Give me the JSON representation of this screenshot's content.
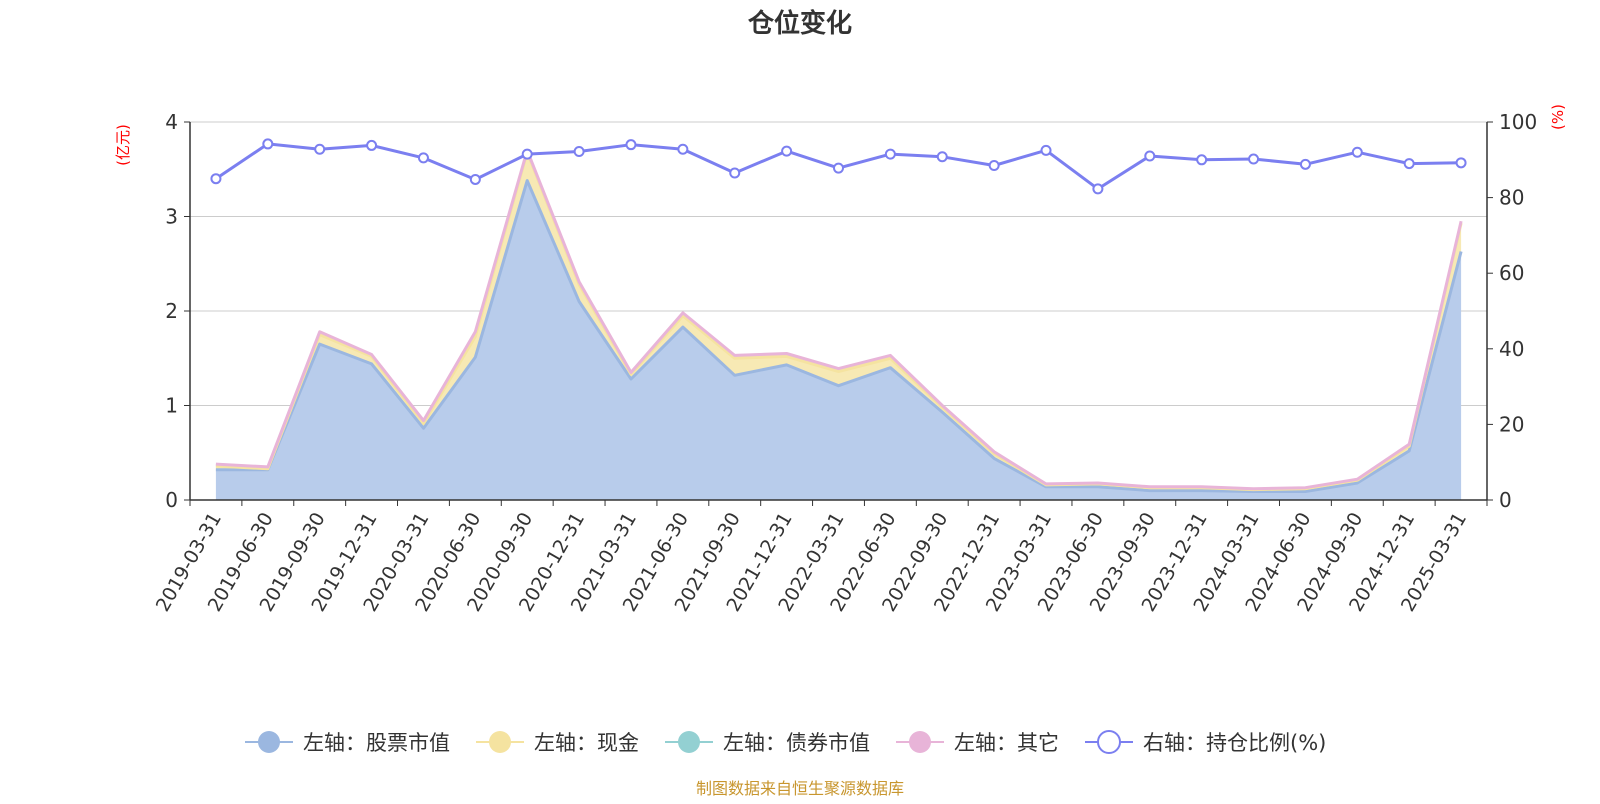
{
  "title": "仓位变化",
  "source": "制图数据来自恒生聚源数据库",
  "chart_data": {
    "type": "area",
    "title": "仓位变化",
    "left_axis": {
      "unit": "(亿元)",
      "ylim": [
        0,
        4
      ],
      "ticks": [
        "0",
        "1",
        "2",
        "3",
        "4"
      ]
    },
    "right_axis": {
      "unit": "(%)",
      "ylim": [
        0,
        100
      ],
      "ticks": [
        "0",
        "20",
        "40",
        "60",
        "80",
        "100"
      ]
    },
    "categories": [
      "2019-03-31",
      "2019-06-30",
      "2019-09-30",
      "2019-12-31",
      "2020-03-31",
      "2020-06-30",
      "2020-09-30",
      "2020-12-31",
      "2021-03-31",
      "2021-06-30",
      "2021-09-30",
      "2021-12-31",
      "2022-03-31",
      "2022-06-30",
      "2022-09-30",
      "2022-12-31",
      "2023-03-31",
      "2023-06-30",
      "2023-09-30",
      "2023-12-31",
      "2024-03-31",
      "2024-06-30",
      "2024-09-30",
      "2024-12-31",
      "2025-03-31"
    ],
    "series": [
      {
        "name": "左轴：股票市值",
        "axis": "left",
        "color": "#9bb7e0",
        "fill": "#b8cceb",
        "values": [
          0.32,
          0.32,
          1.65,
          1.44,
          0.76,
          1.51,
          3.38,
          2.1,
          1.28,
          1.83,
          1.32,
          1.43,
          1.21,
          1.4,
          0.93,
          0.44,
          0.14,
          0.14,
          0.1,
          0.1,
          0.09,
          0.09,
          0.18,
          0.52,
          2.63
        ]
      },
      {
        "name": "左轴：现金",
        "axis": "left",
        "color": "#f5e3a0",
        "fill": "#f7e9b4",
        "values": [
          0.04,
          0.01,
          0.1,
          0.08,
          0.05,
          0.22,
          0.3,
          0.18,
          0.05,
          0.12,
          0.18,
          0.09,
          0.15,
          0.1,
          0.05,
          0.05,
          0.02,
          0.03,
          0.03,
          0.03,
          0.02,
          0.03,
          0.03,
          0.05,
          0.3
        ]
      },
      {
        "name": "左轴：债券市值",
        "axis": "left",
        "color": "#93d0d2",
        "fill": "#a9dcdd",
        "values": [
          0,
          0,
          0,
          0,
          0,
          0,
          0,
          0,
          0,
          0,
          0,
          0,
          0,
          0,
          0,
          0,
          0,
          0,
          0,
          0,
          0,
          0,
          0,
          0,
          0
        ]
      },
      {
        "name": "左轴：其它",
        "axis": "left",
        "color": "#e8b4d8",
        "fill": "#efc9e3",
        "values": [
          0.02,
          0.02,
          0.03,
          0.02,
          0.03,
          0.05,
          0.02,
          0.03,
          0.02,
          0.03,
          0.03,
          0.03,
          0.03,
          0.03,
          0.02,
          0.02,
          0.01,
          0.01,
          0.01,
          0.01,
          0.01,
          0.01,
          0.01,
          0.02,
          0.02
        ]
      },
      {
        "name": "右轴：持仓比例(%)",
        "axis": "right",
        "type": "line",
        "color": "#7b7ff0",
        "values": [
          85.0,
          94.2,
          92.8,
          93.8,
          90.5,
          84.8,
          91.5,
          92.2,
          94.0,
          92.8,
          86.5,
          92.3,
          87.8,
          91.5,
          90.8,
          88.5,
          92.5,
          82.3,
          91.0,
          90.0,
          90.2,
          88.8,
          92.0,
          89.0,
          89.2
        ]
      }
    ],
    "grid": true,
    "legend": "bottom-center"
  }
}
